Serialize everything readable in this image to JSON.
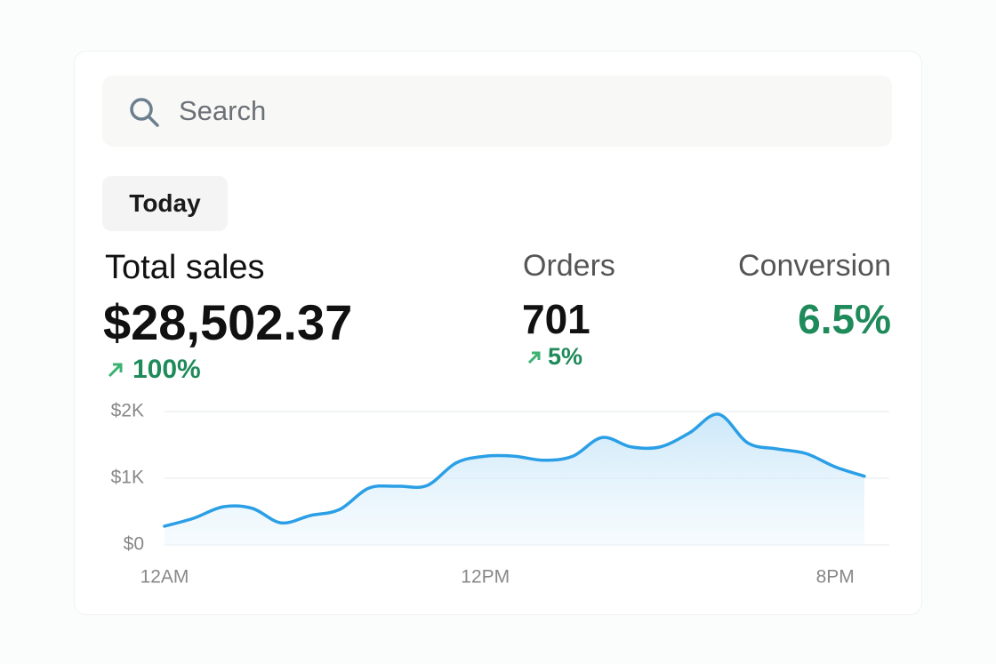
{
  "search": {
    "placeholder": "Search"
  },
  "period": "Today",
  "metrics": [
    {
      "label": "Total sales",
      "value": "$28,502.37",
      "change": "100%"
    },
    {
      "label": "Orders",
      "value": "701",
      "change": "5%"
    },
    {
      "label": "Conversion",
      "value": "6.5%"
    }
  ],
  "chart_data": {
    "type": "line",
    "categories": [
      "12AM",
      null,
      null,
      null,
      null,
      null,
      null,
      null,
      null,
      null,
      null,
      "12PM",
      null,
      null,
      null,
      null,
      null,
      null,
      null,
      null,
      null,
      null,
      null,
      "8PM",
      null
    ],
    "series": [
      {
        "color": "#2b9fe6",
        "values": [
          280,
          400,
          570,
          550,
          330,
          440,
          530,
          850,
          880,
          890,
          1230,
          1330,
          1330,
          1270,
          1330,
          1610,
          1470,
          1470,
          1680,
          1960,
          1530,
          1440,
          1370,
          1170,
          1030
        ]
      }
    ],
    "ylim": [
      0,
      2000
    ],
    "yticks": [
      {
        "value": 0,
        "label": "$0"
      },
      {
        "value": 1000,
        "label": "$1K"
      },
      {
        "value": 2000,
        "label": "$2K"
      }
    ],
    "grid": true
  }
}
